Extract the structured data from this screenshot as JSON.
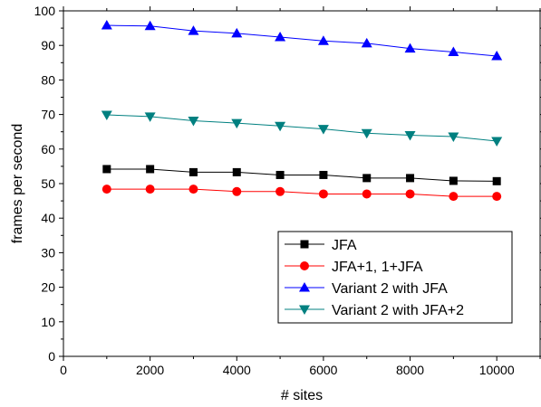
{
  "chart_data": {
    "type": "line",
    "title": "",
    "xlabel": "# sites",
    "ylabel": "frames per second",
    "xlim": [
      0,
      11000
    ],
    "ylim": [
      0,
      100
    ],
    "x_ticks": [
      0,
      2000,
      4000,
      6000,
      8000,
      10000
    ],
    "y_ticks": [
      0,
      10,
      20,
      30,
      40,
      50,
      60,
      70,
      80,
      90,
      100
    ],
    "x_tick_labels": [
      "0",
      "2000",
      "4000",
      "6000",
      "8000",
      "10000"
    ],
    "y_tick_labels": [
      "0",
      "10",
      "20",
      "30",
      "40",
      "50",
      "60",
      "70",
      "80",
      "90",
      "100"
    ],
    "grid": false,
    "legend_position": "lower-right",
    "x": [
      1000,
      2000,
      3000,
      4000,
      5000,
      6000,
      7000,
      8000,
      9000,
      10000
    ],
    "series": [
      {
        "name": "JFA",
        "color": "#000000",
        "marker": "square",
        "values": [
          54.2,
          54.2,
          53.3,
          53.3,
          52.5,
          52.5,
          51.6,
          51.6,
          50.8,
          50.7
        ]
      },
      {
        "name": "JFA+1, 1+JFA",
        "color": "#ff0000",
        "marker": "circle",
        "values": [
          48.4,
          48.4,
          48.4,
          47.7,
          47.7,
          47.0,
          47.0,
          47.0,
          46.3,
          46.3
        ]
      },
      {
        "name": "Variant 2 with JFA",
        "color": "#0000ff",
        "marker": "triangle-up",
        "values": [
          95.8,
          95.6,
          94.2,
          93.5,
          92.4,
          91.3,
          90.6,
          89.1,
          88.1,
          86.9
        ]
      },
      {
        "name": "Variant 2 with JFA+2",
        "color": "#008080",
        "marker": "triangle-down",
        "values": [
          69.9,
          69.4,
          68.2,
          67.5,
          66.7,
          65.8,
          64.6,
          64.0,
          63.6,
          62.3
        ]
      }
    ]
  }
}
